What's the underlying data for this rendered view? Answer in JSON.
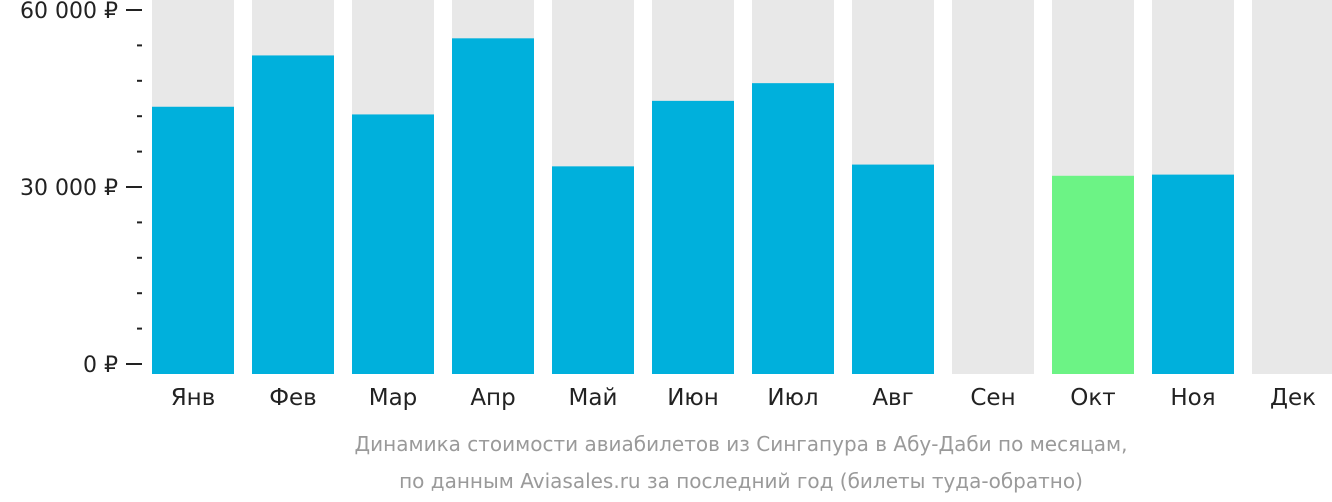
{
  "chart_data": {
    "type": "bar",
    "categories": [
      "Янв",
      "Фев",
      "Мар",
      "Апр",
      "Май",
      "Июн",
      "Июл",
      "Авг",
      "Сен",
      "Окт",
      "Ноя",
      "Дек"
    ],
    "values": [
      43600,
      52300,
      42300,
      55200,
      33500,
      44600,
      47600,
      33800,
      null,
      31900,
      32100,
      null
    ],
    "highlight_index": 9,
    "ylim": [
      0,
      60000
    ],
    "y_ticks": [
      {
        "value": 0,
        "label": "0 ₽"
      },
      {
        "value": 30000,
        "label": "30 000 ₽"
      },
      {
        "value": 60000,
        "label": "60 000 ₽"
      }
    ],
    "y_minor_step": 6000,
    "caption_lines": [
      "Динамика стоимости авиабилетов из Сингапура в Абу-Даби по месяцам,",
      "по данным Aviasales.ru за последний год (билеты туда-обратно)"
    ],
    "colors": {
      "bar": "#00b0dc",
      "highlight": "#6cf385",
      "background_column": "#e8e8e8",
      "axis": "#222222",
      "caption": "#9a9a9a"
    }
  }
}
